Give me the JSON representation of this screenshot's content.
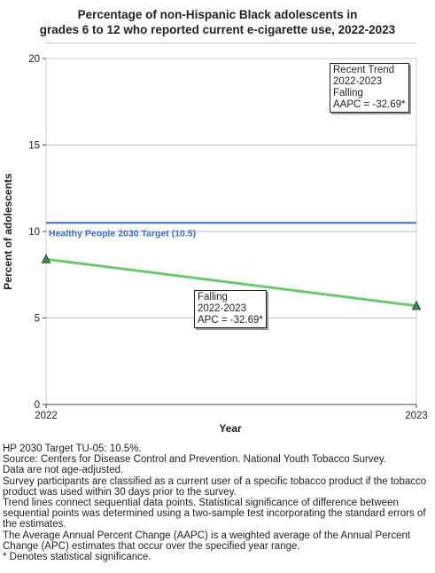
{
  "title_lines": [
    "Percentage of non-Hispanic Black adolescents in",
    "grades 6 to 12 who reported current e-cigarette use, 2022-2023"
  ],
  "chart_data": {
    "type": "line",
    "x": [
      2022,
      2023
    ],
    "series": [
      {
        "values": [
          8.4,
          5.7
        ],
        "color": "#6cc96c",
        "marker_color": "#3a8a5a"
      }
    ],
    "target": {
      "label": "Healthy People 2030 Target (10.5)",
      "value": 10.5,
      "color": "#3a6fd8"
    },
    "xlabel": "Year",
    "ylabel": "Percent of adolescents",
    "xlim": [
      2022,
      2023
    ],
    "ylim": [
      0,
      20
    ],
    "yticks": [
      0,
      5,
      10,
      15,
      20
    ],
    "xticks": [
      "2022",
      "2023"
    ],
    "grid": true,
    "annotations": {
      "segment": [
        "Falling",
        "2022-2023",
        "APC = -32.69*"
      ],
      "trend": [
        "Recent Trend",
        "2022-2023",
        "Falling",
        "AAPC = -32.69*"
      ]
    }
  },
  "footnotes": [
    "HP 2030 Target TU-05: 10.5%.",
    "Source: Centers for Disease Control and Prevention. National Youth Tobacco Survey.",
    "Data are not age-adjusted.",
    "Survey participants are classified as a current user of a specific tobacco product if the tobacco product was used within 30 days prior to the survey.",
    "Trend lines connect sequential data points. Statistical significance of difference between sequential points was determined using a two-sample test incorporating the standard errors of the estimates.",
    "The Average Annual Percent Change (AAPC) is a weighted average of the Annual Percent Change (APC) estimates that occur over the specified year range.",
    "* Denotes statistical significance."
  ]
}
